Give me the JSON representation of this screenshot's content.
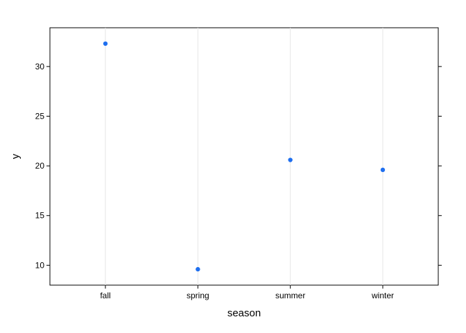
{
  "chart_data": {
    "type": "scatter",
    "title": "",
    "xlabel": "season",
    "ylabel": "y",
    "categories": [
      "fall",
      "spring",
      "summer",
      "winter"
    ],
    "values": [
      32.3,
      9.6,
      20.6,
      19.6
    ],
    "ylim": [
      8,
      33.9
    ],
    "yticks": [
      10,
      15,
      20,
      25,
      30
    ],
    "grid": "vertical reference lines at each category",
    "point_color": "#1f6fef",
    "grid_color": "#e6e6e6",
    "axis_color": "#000000"
  }
}
